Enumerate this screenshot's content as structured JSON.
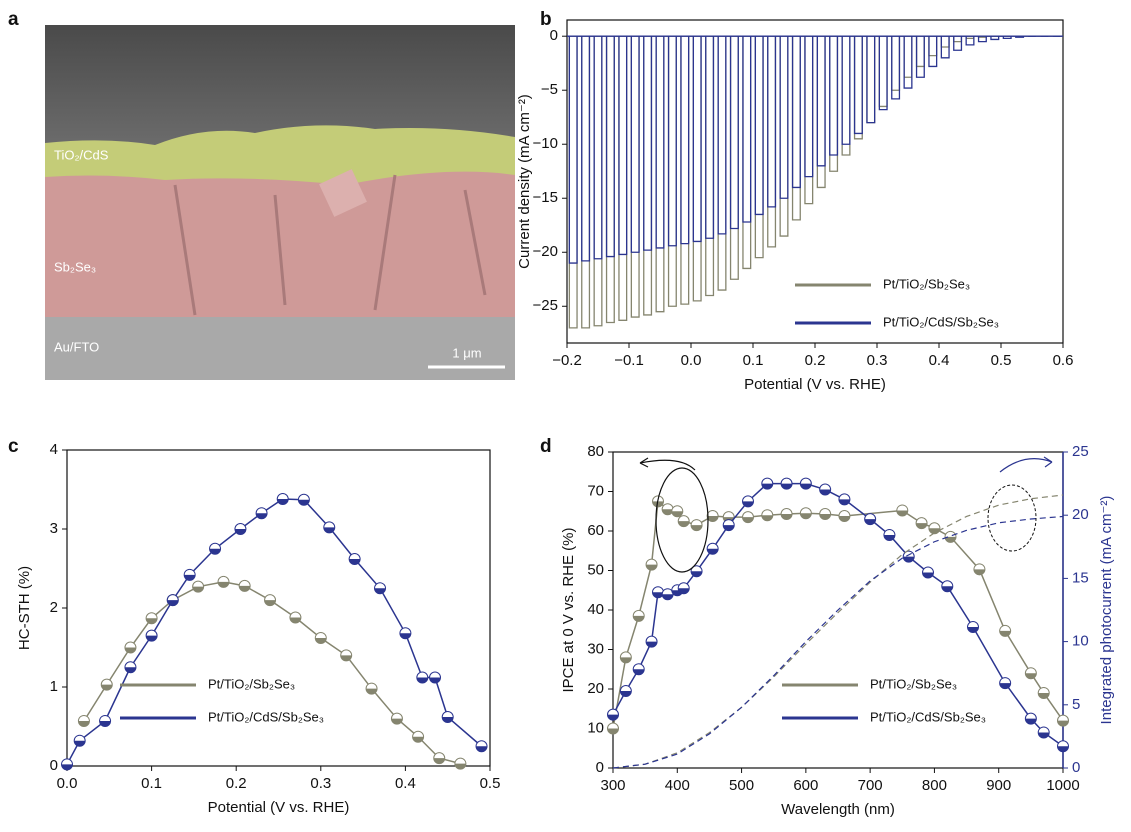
{
  "chart_data": [
    {
      "type": "image",
      "panel_label": "a",
      "labels": [
        "TiO₂/CdS",
        "Sb₂Se₃",
        "Au/FTO"
      ],
      "scale_bar": "1 μm"
    },
    {
      "type": "chopped",
      "panel_label": "b",
      "xlabel": "Potential (V vs. RHE)",
      "ylabel": "Current density (mA cm⁻²)",
      "xlim": [
        -0.2,
        0.6
      ],
      "ylim": [
        -28.4,
        1.5
      ],
      "xticks": [
        {
          "value": -0.2,
          "label": "−0.2"
        },
        {
          "value": -0.1,
          "label": "−0.1"
        },
        {
          "value": 0,
          "label": "0.0"
        },
        0.1,
        0.2,
        0.3,
        0.4,
        0.5,
        0.6
      ],
      "yticks": [
        0,
        {
          "value": -5,
          "label": "−5"
        },
        {
          "value": -10,
          "label": "−10"
        },
        {
          "value": -15,
          "label": "−15"
        },
        {
          "value": -20,
          "label": "−20"
        },
        {
          "value": -25,
          "label": "−25"
        }
      ],
      "legend": "lower right",
      "x": [
        -0.19,
        -0.17,
        -0.15,
        -0.13,
        -0.11,
        -0.09,
        -0.07,
        -0.05,
        -0.03,
        -0.01,
        0.01,
        0.03,
        0.05,
        0.07,
        0.09,
        0.11,
        0.13,
        0.15,
        0.17,
        0.19,
        0.21,
        0.23,
        0.25,
        0.27,
        0.29,
        0.31,
        0.33,
        0.35,
        0.37,
        0.39,
        0.41,
        0.43,
        0.45,
        0.47,
        0.49,
        0.51,
        0.53,
        0.55,
        0.57,
        0.59
      ],
      "series": [
        {
          "name": "Pt/TiO₂/Sb₂Se₃",
          "color": "#85856f",
          "values": [
            -27,
            -27,
            -26.8,
            -26.5,
            -26.3,
            -26,
            -25.8,
            -25.5,
            -25,
            -24.8,
            -24.5,
            -24,
            -23.5,
            -22.5,
            -21.5,
            -20.5,
            -19.5,
            -18.5,
            -17,
            -15.5,
            -14,
            -12.5,
            -11,
            -9.5,
            -8,
            -6.5,
            -5,
            -3.8,
            -2.8,
            -1.8,
            -1,
            -0.5,
            -0.2,
            -0.1,
            0,
            0,
            0,
            0,
            0,
            0
          ]
        },
        {
          "name": "Pt/TiO₂/CdS/Sb₂Se₃",
          "color": "#2b3590",
          "values": [
            -21,
            -20.8,
            -20.6,
            -20.4,
            -20.2,
            -20,
            -19.8,
            -19.6,
            -19.4,
            -19.2,
            -19,
            -18.7,
            -18.3,
            -17.8,
            -17.2,
            -16.5,
            -15.8,
            -15,
            -14,
            -13,
            -12,
            -11,
            -10,
            -9,
            -8,
            -6.8,
            -5.8,
            -4.8,
            -3.8,
            -2.8,
            -2,
            -1.3,
            -0.8,
            -0.5,
            -0.3,
            -0.2,
            -0.1,
            0,
            0,
            0
          ]
        }
      ]
    },
    {
      "type": "line",
      "panel_label": "c",
      "xlabel": "Potential (V vs. RHE)",
      "ylabel": "HC-STH (%)",
      "xlim": [
        0,
        0.5
      ],
      "ylim": [
        0,
        4
      ],
      "xticks": [
        {
          "value": 0,
          "label": "0.0"
        },
        0.1,
        0.2,
        0.3,
        0.4,
        0.5
      ],
      "yticks": [
        0,
        1,
        2,
        3,
        4
      ],
      "legend": "lower left",
      "series": [
        {
          "name": "Pt/TiO₂/Sb₂Se₃",
          "color": "#85856f",
          "marker": "half-circle",
          "x": [
            0.02,
            0.047,
            0.075,
            0.1,
            0.125,
            0.155,
            0.185,
            0.21,
            0.24,
            0.27,
            0.3,
            0.33,
            0.36,
            0.39,
            0.415,
            0.44,
            0.465
          ],
          "values": [
            0.57,
            1.03,
            1.5,
            1.87,
            2.1,
            2.27,
            2.33,
            2.28,
            2.1,
            1.88,
            1.62,
            1.4,
            0.98,
            0.6,
            0.37,
            0.1,
            0.03
          ]
        },
        {
          "name": "Pt/TiO₂/CdS/Sb₂Se₃",
          "color": "#2b3590",
          "marker": "half-circle",
          "x": [
            0,
            0.015,
            0.045,
            0.075,
            0.1,
            0.125,
            0.145,
            0.175,
            0.205,
            0.23,
            0.255,
            0.28,
            0.31,
            0.34,
            0.37,
            0.4,
            0.42,
            0.435,
            0.45,
            0.49
          ],
          "values": [
            0.02,
            0.32,
            0.57,
            1.25,
            1.65,
            2.1,
            2.42,
            2.75,
            3.0,
            3.2,
            3.38,
            3.37,
            3.02,
            2.62,
            2.25,
            1.68,
            1.12,
            1.12,
            0.62,
            0.25
          ]
        }
      ]
    },
    {
      "type": "line",
      "panel_label": "d",
      "xlabel": "Wavelength (nm)",
      "ylabel": "IPCE at 0 V vs. RHE (%)",
      "y2label": "Integrated photocurrent (mA cm⁻²)",
      "y2color": "#2b3590",
      "xlim": [
        300,
        1000
      ],
      "ylim": [
        0,
        80
      ],
      "y2lim": [
        0,
        25
      ],
      "xticks": [
        300,
        400,
        500,
        600,
        700,
        800,
        900,
        1000
      ],
      "yticks": [
        0,
        10,
        20,
        30,
        40,
        50,
        60,
        70,
        80
      ],
      "y2ticks": [
        0,
        5,
        10,
        15,
        20,
        25
      ],
      "legend": "lower right",
      "series": [
        {
          "name": "Pt/TiO₂/Sb₂Se₃",
          "color": "#85856f",
          "marker": "half-circle",
          "x": [
            300,
            320,
            340,
            360,
            370,
            385,
            400,
            410,
            430,
            455,
            480,
            510,
            540,
            570,
            600,
            630,
            660,
            750,
            780,
            800,
            825,
            870,
            910,
            950,
            970,
            1000
          ],
          "values": [
            10,
            28,
            38.5,
            51.5,
            67.5,
            65.5,
            65,
            62.5,
            61.5,
            63.8,
            63.5,
            63.5,
            64,
            64.3,
            64.5,
            64.3,
            63.8,
            65.2,
            62,
            60.7,
            58.5,
            50.3,
            34.7,
            24,
            19,
            12
          ]
        },
        {
          "name": "Pt/TiO₂/CdS/Sb₂Se₃",
          "color": "#2b3590",
          "marker": "half-circle",
          "x": [
            300,
            320,
            340,
            360,
            370,
            385,
            400,
            410,
            430,
            455,
            480,
            510,
            540,
            570,
            600,
            630,
            660,
            700,
            730,
            760,
            790,
            820,
            860,
            910,
            950,
            970,
            1000
          ],
          "values": [
            13.5,
            19.5,
            25,
            32,
            44.5,
            44,
            45,
            45.5,
            49.8,
            55.5,
            61.5,
            67.5,
            72,
            72,
            72,
            70.5,
            68,
            63,
            59,
            53.5,
            49.5,
            46,
            35.7,
            21.5,
            12.5,
            9,
            5.5
          ]
        },
        {
          "color": "#85856f",
          "axis": "y2",
          "linestyle": "dashed",
          "x": [
            300,
            350,
            400,
            450,
            500,
            550,
            600,
            650,
            700,
            750,
            800,
            850,
            900,
            950,
            1000
          ],
          "values": [
            0,
            0.3,
            1.2,
            2.8,
            4.8,
            7.2,
            9.8,
            12.3,
            14.7,
            16.9,
            18.6,
            19.9,
            20.8,
            21.3,
            21.6
          ]
        },
        {
          "color": "#2b3590",
          "axis": "y2",
          "linestyle": "dashed",
          "x": [
            300,
            350,
            400,
            450,
            500,
            550,
            600,
            650,
            700,
            750,
            800,
            850,
            900,
            950,
            1000
          ],
          "values": [
            0,
            0.3,
            1.1,
            2.7,
            4.8,
            7.3,
            10,
            12.5,
            14.8,
            16.6,
            17.9,
            18.8,
            19.4,
            19.7,
            19.9
          ]
        }
      ]
    }
  ]
}
